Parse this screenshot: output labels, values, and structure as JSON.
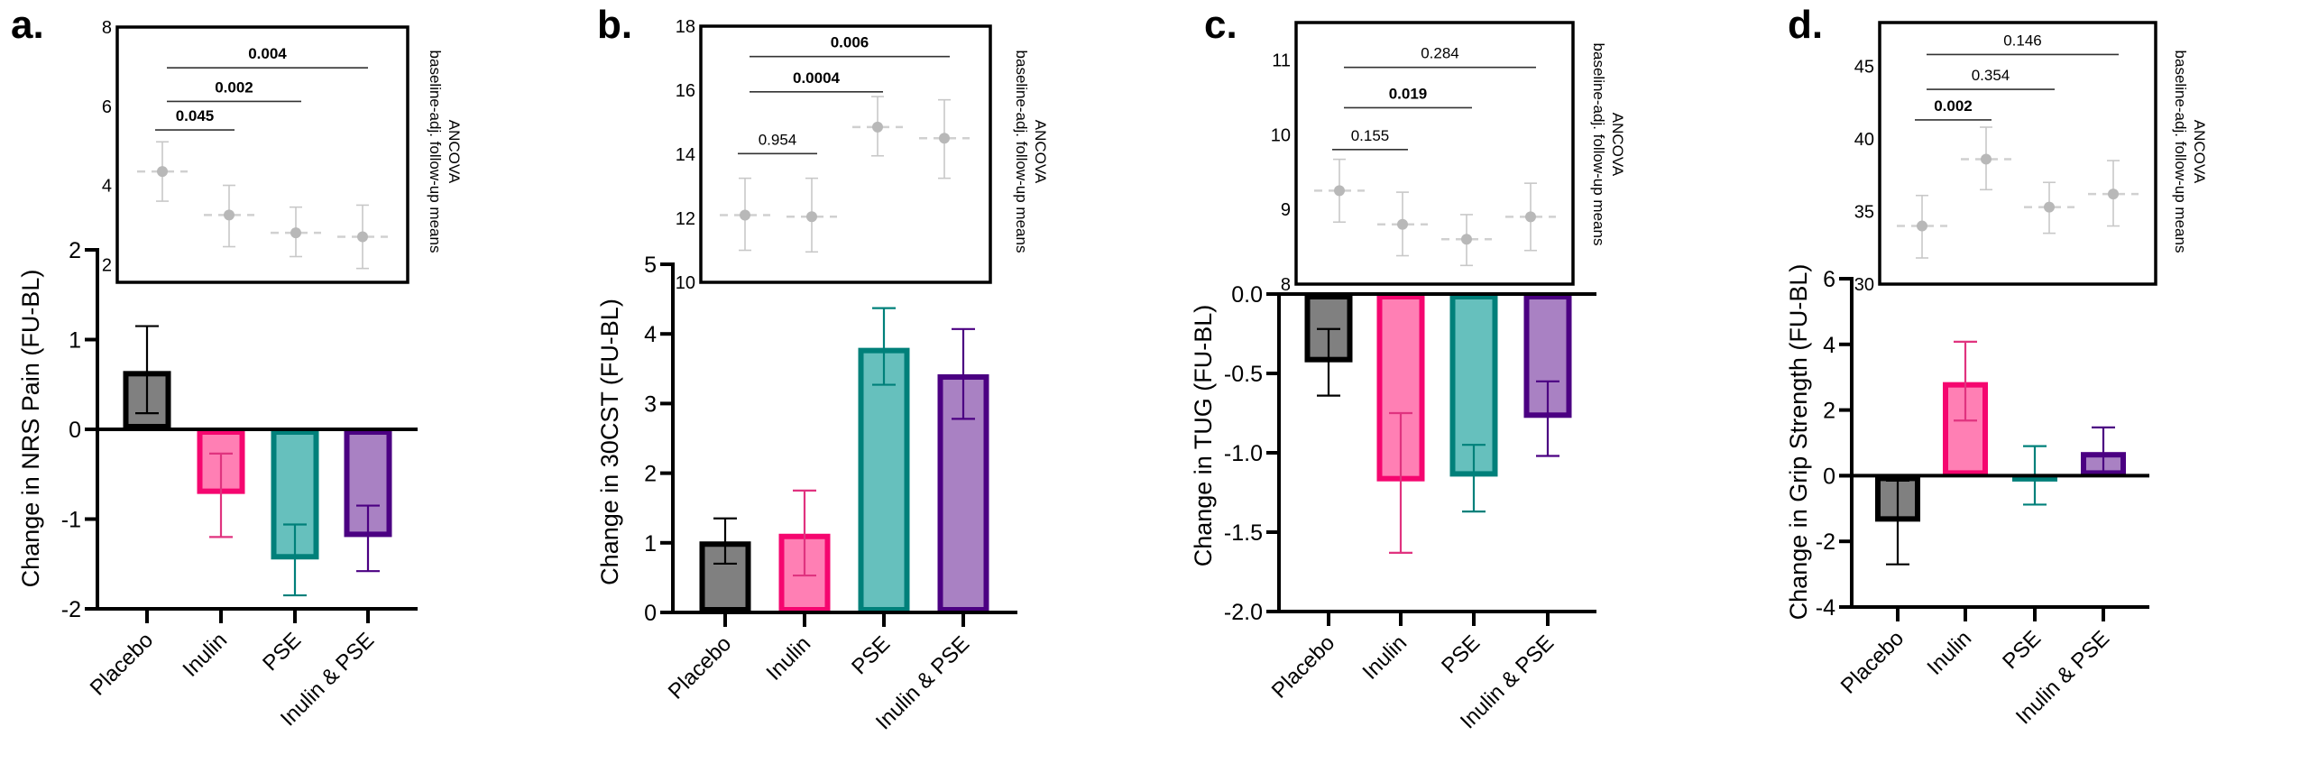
{
  "chart_data": [
    {
      "panel_label": "a.",
      "type": "bar",
      "ylabel": "Change in NRS Pain (FU-BL)",
      "ylim": [
        -2,
        2
      ],
      "yticks": [
        "-2",
        "-1",
        "0",
        "1",
        "2"
      ],
      "categories": [
        "Placebo",
        "Inulin",
        "PSE",
        "Inulin & PSE"
      ],
      "values": [
        0.65,
        -0.72,
        -1.45,
        -1.2
      ],
      "errors": [
        [
          0.18,
          1.15
        ],
        [
          -1.2,
          -0.27
        ],
        [
          -1.85,
          -1.06
        ],
        [
          -1.58,
          -0.85
        ]
      ],
      "inset": {
        "type": "scatter",
        "label_lines": [
          "ANCOVA",
          "baseline-adj. follow-up means"
        ],
        "ylim": [
          1.55,
          8
        ],
        "yticks": [
          "2",
          "4",
          "6",
          "8"
        ],
        "means": [
          4.35,
          3.25,
          2.8,
          2.7
        ],
        "errors": [
          [
            3.6,
            5.1
          ],
          [
            2.45,
            4.0
          ],
          [
            2.2,
            3.45
          ],
          [
            1.9,
            3.5
          ]
        ],
        "brackets": [
          {
            "from": 0,
            "to": 1,
            "p": "0.045",
            "bold": true,
            "y": 5.4
          },
          {
            "from": 0,
            "to": 2,
            "p": "0.002",
            "bold": true,
            "y": 6.12
          },
          {
            "from": 0,
            "to": 3,
            "p": "0.004",
            "bold": true,
            "y": 6.97
          }
        ]
      }
    },
    {
      "panel_label": "b.",
      "type": "bar",
      "ylabel": "Change in 30CST (FU-BL)",
      "ylim": [
        0,
        5
      ],
      "yticks": [
        "0",
        "1",
        "2",
        "3",
        "4",
        "5"
      ],
      "categories": [
        "Placebo",
        "Inulin",
        "PSE",
        "Inulin & PSE"
      ],
      "values": [
        1.02,
        1.13,
        3.8,
        3.42
      ],
      "errors": [
        [
          0.7,
          1.35
        ],
        [
          0.53,
          1.75
        ],
        [
          3.27,
          4.37
        ],
        [
          2.78,
          4.07
        ]
      ],
      "inset": {
        "type": "scatter",
        "label_lines": [
          "ANCOVA",
          "baseline-adj. follow-up means"
        ],
        "ylim": [
          10,
          18
        ],
        "yticks": [
          "10",
          "12",
          "14",
          "16",
          "18"
        ],
        "means": [
          12.1,
          12.05,
          14.85,
          14.5
        ],
        "errors": [
          [
            11.0,
            13.25
          ],
          [
            10.95,
            13.25
          ],
          [
            13.95,
            15.8
          ],
          [
            13.25,
            15.7
          ]
        ],
        "brackets": [
          {
            "from": 0,
            "to": 1,
            "p": "0.954",
            "bold": false,
            "y": 14.02
          },
          {
            "from": 0,
            "to": 2,
            "p": "0.0004",
            "bold": true,
            "y": 15.95
          },
          {
            "from": 0,
            "to": 3,
            "p": "0.006",
            "bold": true,
            "y": 17.05
          }
        ]
      }
    },
    {
      "panel_label": "c.",
      "type": "bar",
      "ylabel": "Change in TUG (FU-BL)",
      "ylim": [
        -2,
        0
      ],
      "yticks": [
        "-2.0",
        "-1.5",
        "-1.0",
        "-0.5",
        "0.0"
      ],
      "categories": [
        "Placebo",
        "Inulin",
        "PSE",
        "Inulin & PSE"
      ],
      "values": [
        -0.43,
        -1.18,
        -1.15,
        -0.78
      ],
      "errors": [
        [
          -0.64,
          -0.22
        ],
        [
          -1.63,
          -0.75
        ],
        [
          -1.37,
          -0.95
        ],
        [
          -1.02,
          -0.55
        ]
      ],
      "inset": {
        "type": "scatter",
        "label_lines": [
          "ANCOVA",
          "baseline-adj. follow-up means"
        ],
        "ylim": [
          8,
          11.5
        ],
        "yticks": [
          "8",
          "9",
          "10",
          "11"
        ],
        "means": [
          9.25,
          8.8,
          8.6,
          8.9
        ],
        "errors": [
          [
            8.83,
            9.67
          ],
          [
            8.38,
            9.23
          ],
          [
            8.25,
            8.93
          ],
          [
            8.45,
            9.35
          ]
        ],
        "brackets": [
          {
            "from": 0,
            "to": 1,
            "p": "0.155",
            "bold": false,
            "y": 9.8
          },
          {
            "from": 0,
            "to": 2,
            "p": "0.019",
            "bold": true,
            "y": 10.36
          },
          {
            "from": 0,
            "to": 3,
            "p": "0.284",
            "bold": false,
            "y": 10.9
          }
        ]
      }
    },
    {
      "panel_label": "d.",
      "type": "bar",
      "ylabel": "Change in Grip Strength (FU-BL)",
      "ylim": [
        -4,
        6
      ],
      "yticks": [
        "-4",
        "-2",
        "0",
        "2",
        "4",
        "6"
      ],
      "categories": [
        "Placebo",
        "Inulin",
        "PSE",
        "Inulin & PSE"
      ],
      "values": [
        -1.4,
        2.85,
        -0.1,
        0.72
      ],
      "errors": [
        [
          -2.7,
          -0.15
        ],
        [
          1.68,
          4.08
        ],
        [
          -0.88,
          0.9
        ],
        [
          0.02,
          1.47
        ]
      ],
      "inset": {
        "type": "scatter",
        "label_lines": [
          "ANCOVA",
          "baseline-adj. follow-up means"
        ],
        "ylim": [
          30,
          48
        ],
        "yticks": [
          "30",
          "35",
          "40",
          "45"
        ],
        "means": [
          34.0,
          38.6,
          35.3,
          36.2
        ],
        "errors": [
          [
            31.8,
            36.1
          ],
          [
            36.5,
            40.8
          ],
          [
            33.5,
            37.0
          ],
          [
            34.0,
            38.5
          ]
        ],
        "brackets": [
          {
            "from": 0,
            "to": 1,
            "p": "0.002",
            "bold": true,
            "y": 41.3
          },
          {
            "from": 0,
            "to": 2,
            "p": "0.354",
            "bold": false,
            "y": 43.4
          },
          {
            "from": 0,
            "to": 3,
            "p": "0.146",
            "bold": false,
            "y": 45.8
          }
        ]
      }
    }
  ],
  "colors": {
    "fills": [
      "#808080",
      "#ff7fb4",
      "#66c0bd",
      "#a981c3"
    ],
    "borders": [
      "#000000",
      "#f5066f",
      "#00807a",
      "#4b0082"
    ],
    "error_bars": [
      "#000000",
      "#e0337f",
      "#00807a",
      "#4b0082"
    ],
    "inset_points": "#b8b8b8",
    "inset_error": "#c8c8c8"
  }
}
